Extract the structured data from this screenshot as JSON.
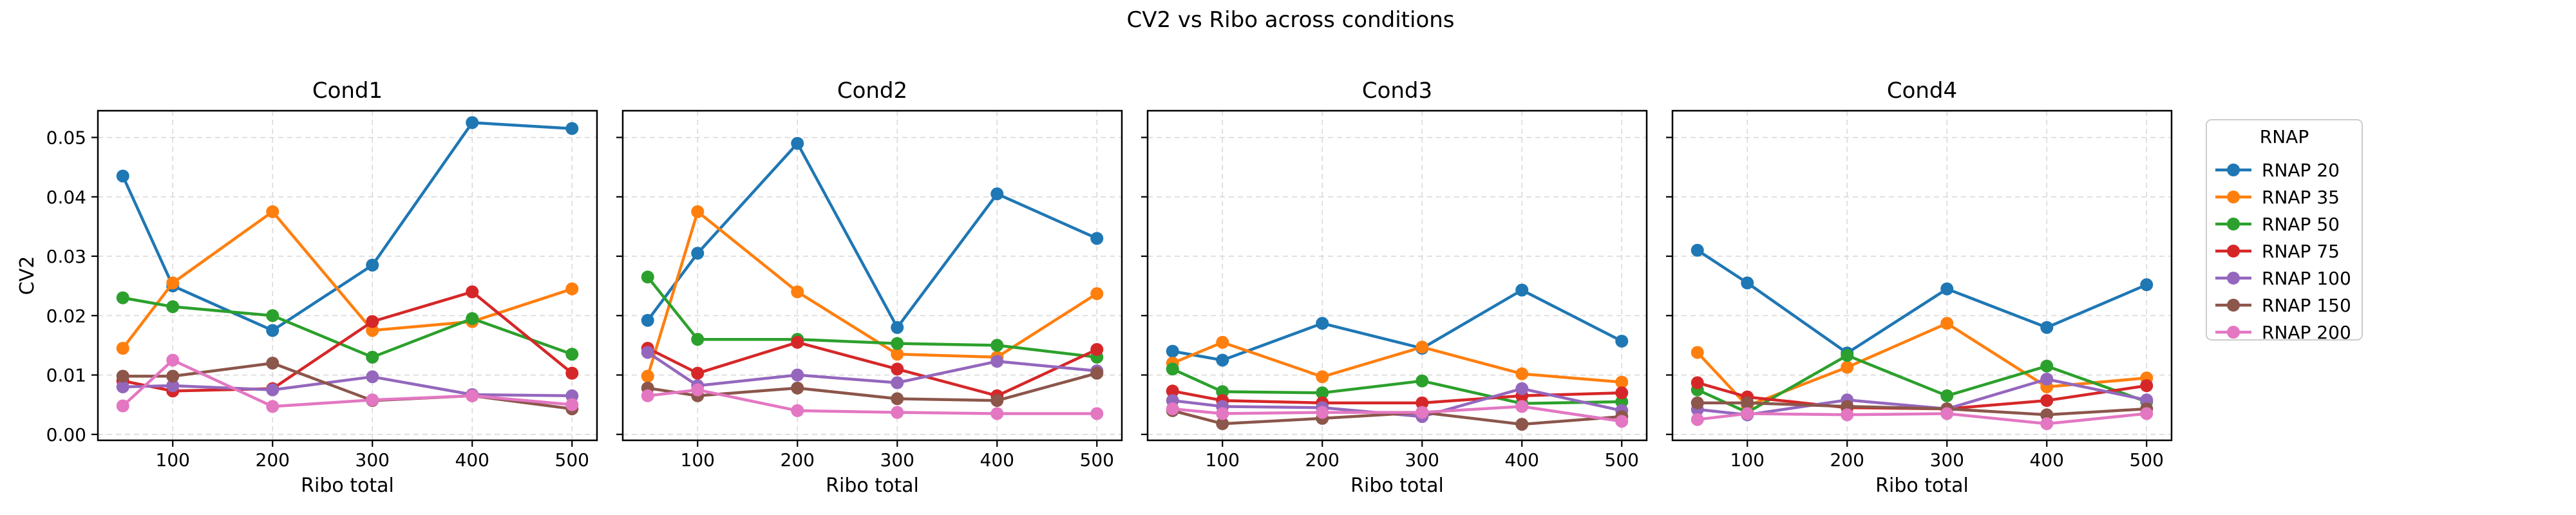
{
  "figure": {
    "suptitle": "CV2 vs Ribo across conditions"
  },
  "chart_data": {
    "type": "line",
    "ylabel": "CV2",
    "xlabel": "Ribo total",
    "x": [
      50,
      100,
      200,
      300,
      400,
      500
    ],
    "x_ticks": [
      100,
      200,
      300,
      400,
      500
    ],
    "y_ticks": [
      0.0,
      0.01,
      0.02,
      0.03,
      0.04,
      0.05
    ],
    "y_tick_labels": [
      "0.00",
      "0.01",
      "0.02",
      "0.03",
      "0.04",
      "0.05"
    ],
    "xlim": [
      25,
      525
    ],
    "ylim": [
      -0.001,
      0.0545
    ],
    "grid": true,
    "sharey": true,
    "legend": {
      "title": "RNAP",
      "placement": "outside-right",
      "entries": [
        "RNAP 20",
        "RNAP 35",
        "RNAP 50",
        "RNAP 75",
        "RNAP 100",
        "RNAP 150",
        "RNAP 200"
      ]
    },
    "colors": [
      "#1f77b4",
      "#ff7f0e",
      "#2ca02c",
      "#d62728",
      "#9467bd",
      "#8c564b",
      "#e377c2"
    ],
    "panels": [
      {
        "title": "Cond1",
        "series": [
          {
            "name": "RNAP 20",
            "values": [
              0.0435,
              0.025,
              0.0175,
              0.0285,
              0.0525,
              0.0515
            ]
          },
          {
            "name": "RNAP 35",
            "values": [
              0.0145,
              0.0255,
              0.0375,
              0.0175,
              0.019,
              0.0245
            ]
          },
          {
            "name": "RNAP 50",
            "values": [
              0.023,
              0.0215,
              0.02,
              0.013,
              0.0195,
              0.0135
            ]
          },
          {
            "name": "RNAP 75",
            "values": [
              0.009,
              0.0073,
              0.0077,
              0.019,
              0.024,
              0.0103
            ]
          },
          {
            "name": "RNAP 100",
            "values": [
              0.008,
              0.0082,
              0.0075,
              0.0097,
              0.0067,
              0.0065
            ]
          },
          {
            "name": "RNAP 150",
            "values": [
              0.0098,
              0.0098,
              0.012,
              0.0057,
              0.0065,
              0.0043
            ]
          },
          {
            "name": "RNAP 200",
            "values": [
              0.0048,
              0.0125,
              0.0047,
              0.0058,
              0.0065,
              0.005
            ]
          }
        ]
      },
      {
        "title": "Cond2",
        "series": [
          {
            "name": "RNAP 20",
            "values": [
              0.0192,
              0.0305,
              0.049,
              0.018,
              0.0405,
              0.033
            ]
          },
          {
            "name": "RNAP 35",
            "values": [
              0.0098,
              0.0375,
              0.024,
              0.0135,
              0.013,
              0.0237
            ]
          },
          {
            "name": "RNAP 50",
            "values": [
              0.0265,
              0.016,
              0.016,
              0.0153,
              0.015,
              0.013
            ]
          },
          {
            "name": "RNAP 75",
            "values": [
              0.0145,
              0.0103,
              0.0155,
              0.011,
              0.0065,
              0.0143
            ]
          },
          {
            "name": "RNAP 100",
            "values": [
              0.0138,
              0.0082,
              0.01,
              0.0087,
              0.0123,
              0.0107
            ]
          },
          {
            "name": "RNAP 150",
            "values": [
              0.0078,
              0.0065,
              0.0078,
              0.006,
              0.0057,
              0.0103
            ]
          },
          {
            "name": "RNAP 200",
            "values": [
              0.0065,
              0.0075,
              0.004,
              0.0037,
              0.0035,
              0.0035
            ]
          }
        ]
      },
      {
        "title": "Cond3",
        "series": [
          {
            "name": "RNAP 20",
            "values": [
              0.014,
              0.0125,
              0.0187,
              0.0145,
              0.0243,
              0.0157
            ]
          },
          {
            "name": "RNAP 35",
            "values": [
              0.012,
              0.0155,
              0.0097,
              0.0147,
              0.0102,
              0.0088
            ]
          },
          {
            "name": "RNAP 50",
            "values": [
              0.011,
              0.0072,
              0.007,
              0.009,
              0.0052,
              0.0055
            ]
          },
          {
            "name": "RNAP 75",
            "values": [
              0.0073,
              0.0057,
              0.0053,
              0.0053,
              0.0065,
              0.007
            ]
          },
          {
            "name": "RNAP 100",
            "values": [
              0.0057,
              0.0047,
              0.0045,
              0.003,
              0.0077,
              0.004
            ]
          },
          {
            "name": "RNAP 150",
            "values": [
              0.004,
              0.0018,
              0.0027,
              0.0037,
              0.0017,
              0.003
            ]
          },
          {
            "name": "RNAP 200",
            "values": [
              0.0043,
              0.0035,
              0.0037,
              0.0037,
              0.0047,
              0.0022
            ]
          }
        ]
      },
      {
        "title": "Cond4",
        "series": [
          {
            "name": "RNAP 20",
            "values": [
              0.031,
              0.0255,
              0.0137,
              0.0245,
              0.018,
              0.0252
            ]
          },
          {
            "name": "RNAP 35",
            "values": [
              0.0138,
              0.0048,
              0.0113,
              0.0187,
              0.008,
              0.0095
            ]
          },
          {
            "name": "RNAP 50",
            "values": [
              0.0075,
              0.0037,
              0.0133,
              0.0065,
              0.0115,
              0.0055
            ]
          },
          {
            "name": "RNAP 75",
            "values": [
              0.0087,
              0.0063,
              0.0045,
              0.0043,
              0.0057,
              0.0082
            ]
          },
          {
            "name": "RNAP 100",
            "values": [
              0.0042,
              0.0033,
              0.0058,
              0.0043,
              0.0093,
              0.0058
            ]
          },
          {
            "name": "RNAP 150",
            "values": [
              0.0053,
              0.0053,
              0.0047,
              0.0043,
              0.0033,
              0.0043
            ]
          },
          {
            "name": "RNAP 200",
            "values": [
              0.0025,
              0.0035,
              0.0033,
              0.0035,
              0.0018,
              0.0035
            ]
          }
        ]
      }
    ]
  }
}
